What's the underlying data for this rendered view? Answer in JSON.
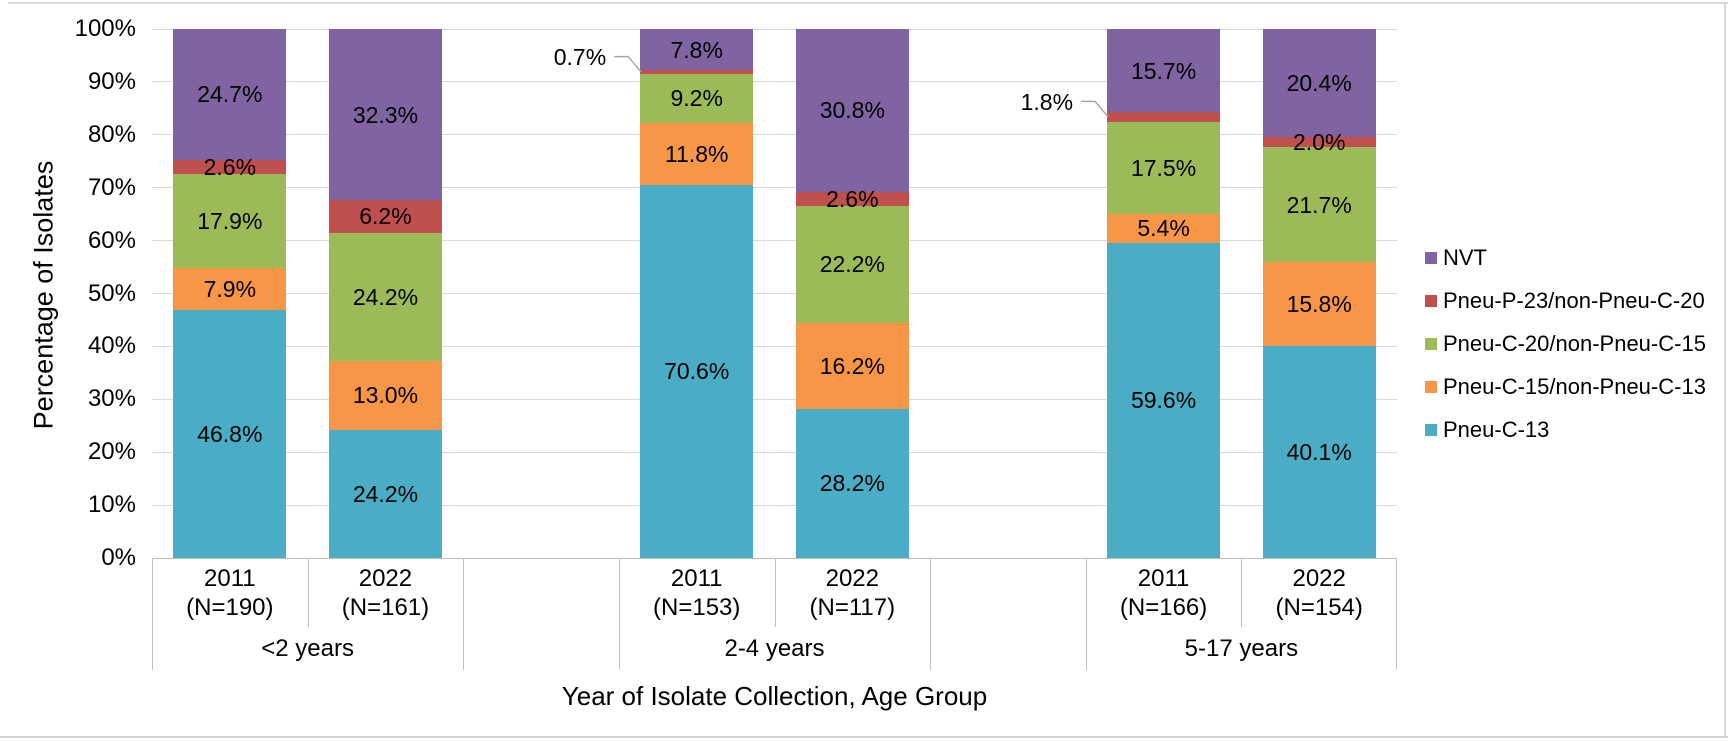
{
  "chart_data": {
    "type": "bar",
    "subtype": "stacked-100-percent-column",
    "title": "",
    "ylabel": "Percentage of Isolates",
    "xlabel": "Year of Isolate Collection, Age Group",
    "ylim": [
      0,
      100
    ],
    "yticks": [
      "0%",
      "10%",
      "20%",
      "30%",
      "40%",
      "50%",
      "60%",
      "70%",
      "80%",
      "90%",
      "100%"
    ],
    "grid": "horizontal",
    "legend_position": "right",
    "series_order_bottom_to_top": [
      "Pneu-C-13",
      "Pneu-C-15/non-Pneu-C-13",
      "Pneu-C-20/non-Pneu-C-15",
      "Pneu-P-23/non-Pneu-C-20",
      "NVT"
    ],
    "legend": [
      {
        "label": "NVT",
        "color": "#8064A2"
      },
      {
        "label": "Pneu-P-23/non-Pneu-C-20",
        "color": "#C0504D"
      },
      {
        "label": "Pneu-C-20/non-Pneu-C-15",
        "color": "#9BBB59"
      },
      {
        "label": "Pneu-C-15/non-Pneu-C-13",
        "color": "#F79646"
      },
      {
        "label": "Pneu-C-13",
        "color": "#4BACC6"
      }
    ],
    "groups": [
      {
        "label": "<2 years",
        "bars": [
          {
            "year": "2011",
            "n_label": "(N=190)",
            "segments": [
              {
                "series": "Pneu-C-13",
                "value": 46.8,
                "label": "46.8%"
              },
              {
                "series": "Pneu-C-15/non-Pneu-C-13",
                "value": 7.9,
                "label": "7.9%"
              },
              {
                "series": "Pneu-C-20/non-Pneu-C-15",
                "value": 17.9,
                "label": "17.9%"
              },
              {
                "series": "Pneu-P-23/non-Pneu-C-20",
                "value": 2.6,
                "label": "2.6%"
              },
              {
                "series": "NVT",
                "value": 24.7,
                "label": "24.7%"
              }
            ]
          },
          {
            "year": "2022",
            "n_label": "(N=161)",
            "segments": [
              {
                "series": "Pneu-C-13",
                "value": 24.2,
                "label": "24.2%"
              },
              {
                "series": "Pneu-C-15/non-Pneu-C-13",
                "value": 13.0,
                "label": "13.0%"
              },
              {
                "series": "Pneu-C-20/non-Pneu-C-15",
                "value": 24.2,
                "label": "24.2%"
              },
              {
                "series": "Pneu-P-23/non-Pneu-C-20",
                "value": 6.2,
                "label": "6.2%"
              },
              {
                "series": "NVT",
                "value": 32.3,
                "label": "32.3%"
              }
            ]
          }
        ]
      },
      {
        "label": "2-4 years",
        "bars": [
          {
            "year": "2011",
            "n_label": "(N=153)",
            "segments": [
              {
                "series": "Pneu-C-13",
                "value": 70.6,
                "label": "70.6%"
              },
              {
                "series": "Pneu-C-15/non-Pneu-C-13",
                "value": 11.8,
                "label": "11.8%"
              },
              {
                "series": "Pneu-C-20/non-Pneu-C-15",
                "value": 9.2,
                "label": "9.2%"
              },
              {
                "series": "Pneu-P-23/non-Pneu-C-20",
                "value": 0.7,
                "label": "0.7%",
                "callout": true
              },
              {
                "series": "NVT",
                "value": 7.8,
                "label": "7.8%"
              }
            ]
          },
          {
            "year": "2022",
            "n_label": "(N=117)",
            "segments": [
              {
                "series": "Pneu-C-13",
                "value": 28.2,
                "label": "28.2%"
              },
              {
                "series": "Pneu-C-15/non-Pneu-C-13",
                "value": 16.2,
                "label": "16.2%"
              },
              {
                "series": "Pneu-C-20/non-Pneu-C-15",
                "value": 22.2,
                "label": "22.2%"
              },
              {
                "series": "Pneu-P-23/non-Pneu-C-20",
                "value": 2.6,
                "label": "2.6%"
              },
              {
                "series": "NVT",
                "value": 30.8,
                "label": "30.8%"
              }
            ]
          }
        ]
      },
      {
        "label": "5-17 years",
        "bars": [
          {
            "year": "2011",
            "n_label": "(N=166)",
            "segments": [
              {
                "series": "Pneu-C-13",
                "value": 59.6,
                "label": "59.6%"
              },
              {
                "series": "Pneu-C-15/non-Pneu-C-13",
                "value": 5.4,
                "label": "5.4%"
              },
              {
                "series": "Pneu-C-20/non-Pneu-C-15",
                "value": 17.5,
                "label": "17.5%"
              },
              {
                "series": "Pneu-P-23/non-Pneu-C-20",
                "value": 1.8,
                "label": "1.8%",
                "callout": true
              },
              {
                "series": "NVT",
                "value": 15.7,
                "label": "15.7%"
              }
            ]
          },
          {
            "year": "2022",
            "n_label": "(N=154)",
            "segments": [
              {
                "series": "Pneu-C-13",
                "value": 40.1,
                "label": "40.1%"
              },
              {
                "series": "Pneu-C-15/non-Pneu-C-13",
                "value": 15.8,
                "label": "15.8%"
              },
              {
                "series": "Pneu-C-20/non-Pneu-C-15",
                "value": 21.7,
                "label": "21.7%"
              },
              {
                "series": "Pneu-P-23/non-Pneu-C-20",
                "value": 2.0,
                "label": "2.0%"
              },
              {
                "series": "NVT",
                "value": 20.4,
                "label": "20.4%"
              }
            ]
          }
        ]
      }
    ],
    "style_colors": {
      "gridline": "#d9d9d9",
      "axis_table_border": "#bfbfbf",
      "callout_line": "#a6a6a6",
      "text": "#000000"
    }
  }
}
